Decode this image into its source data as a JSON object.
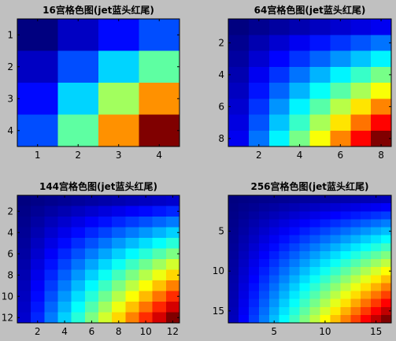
{
  "figure": {
    "background": "#c0c0c0",
    "colormap": "jet"
  },
  "chart_data": [
    {
      "type": "heatmap",
      "title": "16宫格色图(jet蓝头红尾)",
      "n": 4,
      "value_formula": "i*j (row index times column index)",
      "colormap": "jet",
      "xticks": [
        1,
        2,
        3,
        4
      ],
      "yticks": [
        1,
        2,
        3,
        4
      ],
      "xlim": [
        0.5,
        4.5
      ],
      "ylim": [
        0.5,
        4.5
      ],
      "y_reversed": true
    },
    {
      "type": "heatmap",
      "title": "64宫格色图(jet蓝头红尾)",
      "n": 8,
      "value_formula": "i*j (row index times column index)",
      "colormap": "jet",
      "xticks": [
        2,
        4,
        6,
        8
      ],
      "yticks": [
        2,
        4,
        6,
        8
      ],
      "xlim": [
        0.5,
        8.5
      ],
      "ylim": [
        0.5,
        8.5
      ],
      "y_reversed": true
    },
    {
      "type": "heatmap",
      "title": "144宫格色图(jet蓝头红尾)",
      "n": 12,
      "value_formula": "i*j (row index times column index)",
      "colormap": "jet",
      "xticks": [
        2,
        4,
        6,
        8,
        10,
        12
      ],
      "yticks": [
        2,
        4,
        6,
        8,
        10,
        12
      ],
      "xlim": [
        0.5,
        12.5
      ],
      "ylim": [
        0.5,
        12.5
      ],
      "y_reversed": true
    },
    {
      "type": "heatmap",
      "title": "256宫格色图(jet蓝头红尾)",
      "n": 16,
      "value_formula": "i*j (row index times column index)",
      "colormap": "jet",
      "xticks": [
        5,
        10,
        15
      ],
      "yticks": [
        5,
        10,
        15
      ],
      "xlim": [
        0.5,
        16.5
      ],
      "ylim": [
        0.5,
        16.5
      ],
      "y_reversed": true
    }
  ]
}
